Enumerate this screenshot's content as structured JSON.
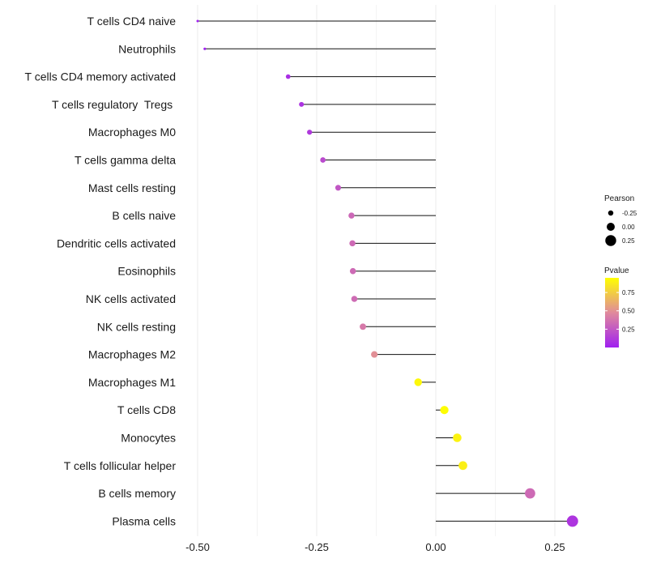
{
  "chart_data": {
    "type": "lollipop",
    "title": "",
    "xlabel": "",
    "ylabel": "",
    "xlim": [
      -0.52,
      0.3
    ],
    "xticks": [
      -0.5,
      -0.25,
      0.0,
      0.25
    ],
    "xtick_labels": [
      "-0.50",
      "-0.25",
      "0.00",
      "0.25"
    ],
    "grid": true,
    "categories": [
      "T cells CD4 naive",
      "Neutrophils",
      "T cells CD4 memory activated",
      "T cells regulatory  Tregs ",
      "Macrophages M0",
      "T cells gamma delta",
      "Mast cells resting",
      "B cells naive",
      "Dendritic cells activated",
      "Eosinophils",
      "NK cells activated",
      "NK cells resting",
      "Macrophages M2",
      "Macrophages M1",
      "T cells CD8",
      "Monocytes",
      "T cells follicular helper",
      "B cells memory",
      "Plasma cells"
    ],
    "pearson": [
      -0.5,
      -0.485,
      -0.31,
      -0.282,
      -0.265,
      -0.237,
      -0.205,
      -0.177,
      -0.175,
      -0.174,
      -0.171,
      -0.153,
      -0.129,
      -0.037,
      0.018,
      0.045,
      0.057,
      0.198,
      0.287
    ],
    "pvalue": [
      0.001,
      0.002,
      0.07,
      0.09,
      0.12,
      0.2,
      0.26,
      0.34,
      0.35,
      0.35,
      0.36,
      0.42,
      0.52,
      0.97,
      0.99,
      0.95,
      0.93,
      0.35,
      0.1
    ],
    "legend": {
      "size_title": "Pearson",
      "size_breaks": [
        -0.25,
        0.0,
        0.25
      ],
      "size_labels": [
        "-0.25",
        "0.00",
        "0.25"
      ],
      "color_title": "Pvalue",
      "color_breaks": [
        0.75,
        0.5,
        0.25
      ],
      "color_labels": [
        "0.75",
        "0.50",
        "0.25"
      ],
      "color_low": "#A020F0",
      "color_high": "#FFFF00",
      "placement": "right"
    }
  }
}
